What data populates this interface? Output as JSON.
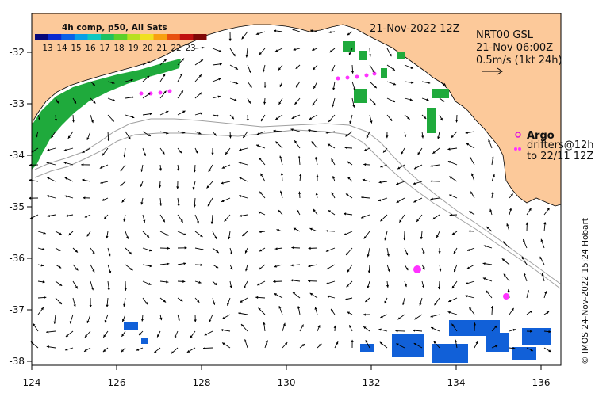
{
  "map": {
    "date_title": "21-Nov-2022 12Z",
    "product": "NRT00 GSL",
    "product_time": "21-Nov 06:00Z",
    "scale_label": "0.5m/s (1kt 24h)",
    "argo_label": "Argo",
    "drifters_label": "drifters@12h",
    "drifters_range": "to 22/11 12Z",
    "credit": "© IMOS 24-Nov-2022 15:24 Hobart",
    "lon_ticks": [
      "124",
      "126",
      "128",
      "130",
      "132",
      "134",
      "136"
    ],
    "lat_ticks": [
      "-32",
      "-33",
      "-34",
      "-35",
      "-36",
      "-37",
      "-38"
    ],
    "colorbar": {
      "title": "4h comp, p50, All Sats",
      "labels": [
        "13",
        "14",
        "15",
        "16",
        "17",
        "18",
        "19",
        "20",
        "21",
        "22",
        "23"
      ]
    },
    "colors": {
      "land": "#fcc99a",
      "coast": "#000000",
      "shelf": "#a0a0a0",
      "warm_sst": "#1faa3c",
      "cool_sst": "#1160d8",
      "argo": "#e010e0",
      "drifter": "#ff33ff",
      "arrow": "#000000"
    }
  }
}
